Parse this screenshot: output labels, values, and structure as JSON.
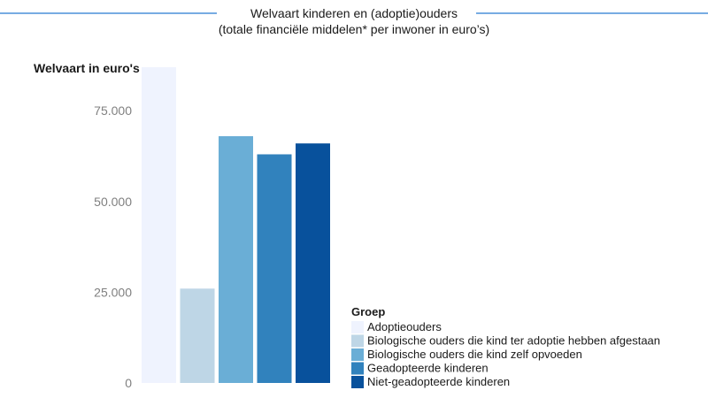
{
  "chart_data": {
    "type": "bar",
    "title": "Welvaart kinderen en (adoptie)ouders",
    "subtitle": "(totale financiële middelen* per inwoner in euro’s)",
    "ylabel": "Welvaart in euro's",
    "xlabel": "",
    "ylim": [
      0,
      87000
    ],
    "yticks": [
      0,
      25000,
      50000,
      75000
    ],
    "ytick_labels": [
      "0",
      "25.000",
      "50.000",
      "75.000"
    ],
    "grid": false,
    "legend": {
      "title": "Groep",
      "placement": "bottom-right"
    },
    "categories": [
      "Adoptieouders",
      "Biologische ouders die kind ter adoptie hebben afgestaan",
      "Biologische ouders die kind zelf opvoeden",
      "Geadopteerde kinderen",
      "Niet-geadopteerde kinderen"
    ],
    "values": [
      87000,
      26000,
      68000,
      63000,
      66000
    ],
    "colors": [
      "#eff3fe",
      "#bed6e6",
      "#6aaed6",
      "#3182bd",
      "#08519c"
    ]
  }
}
